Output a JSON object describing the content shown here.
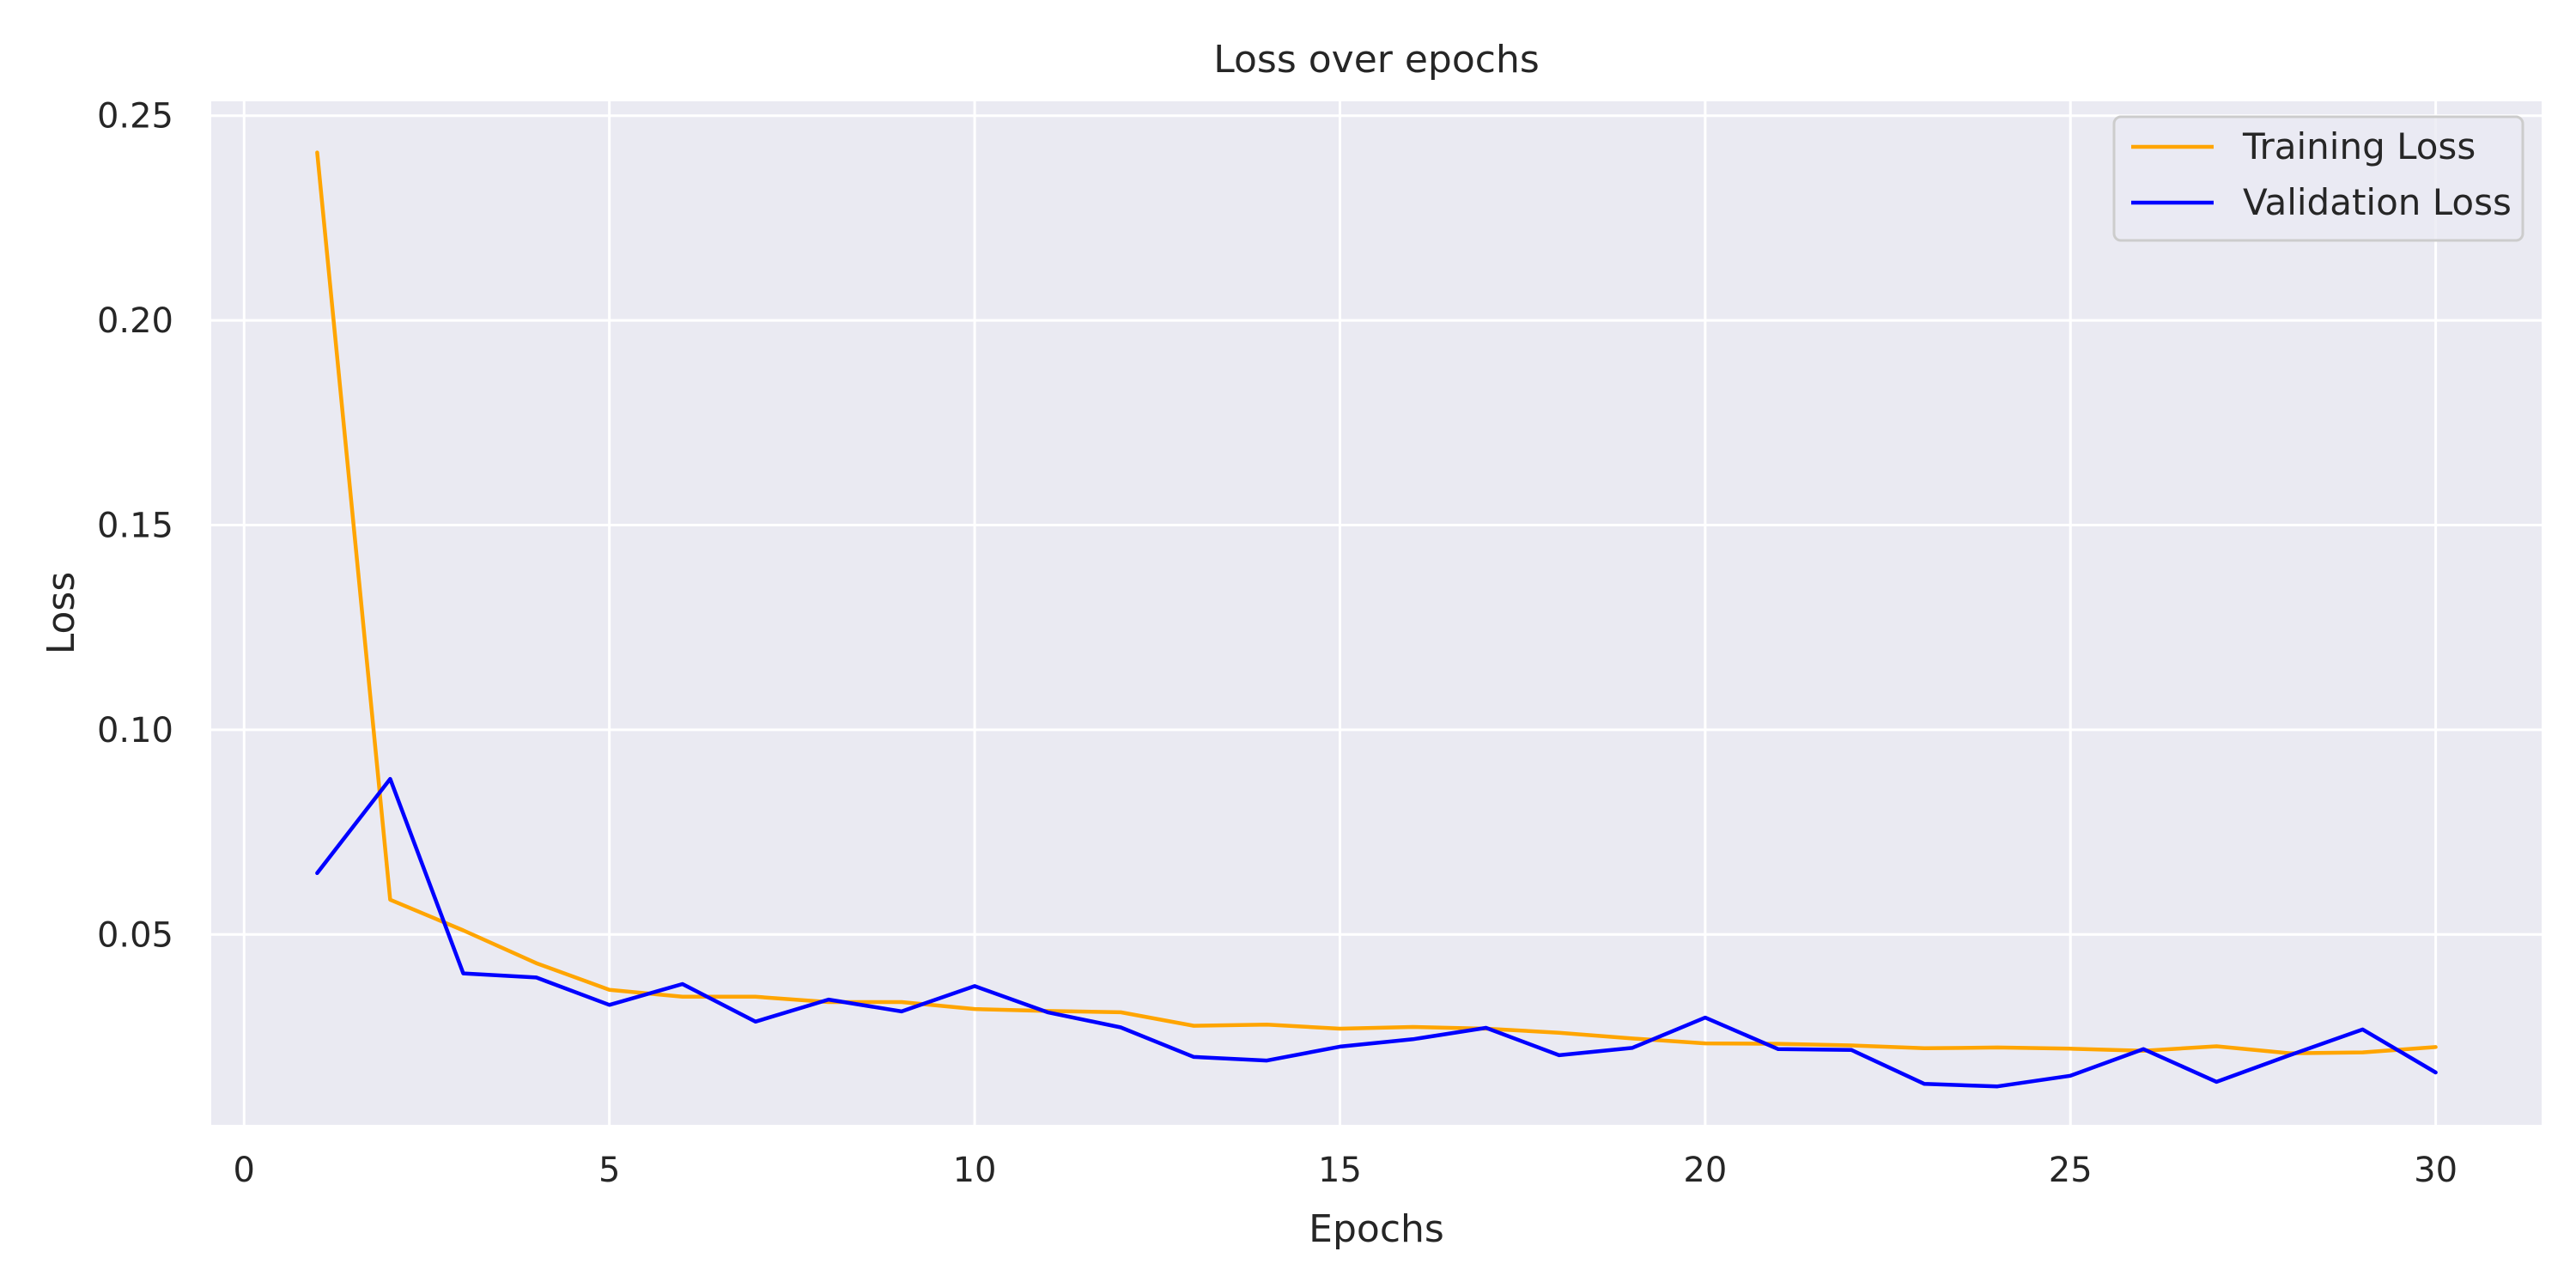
{
  "chart_data": {
    "type": "line",
    "title": "Loss over epochs",
    "xlabel": "Epochs",
    "ylabel": "Loss",
    "xlim": [
      -0.45,
      31.45
    ],
    "ylim": [
      0.0035,
      0.2535
    ],
    "xticks": [
      0,
      5,
      10,
      15,
      20,
      25,
      30
    ],
    "xtick_labels": [
      "0",
      "5",
      "10",
      "15",
      "20",
      "25",
      "30"
    ],
    "yticks": [
      0.05,
      0.1,
      0.15,
      0.2,
      0.25
    ],
    "ytick_labels": [
      "0.05",
      "0.10",
      "0.15",
      "0.20",
      "0.25"
    ],
    "grid": true,
    "legend_position": "top-right",
    "x": [
      1,
      2,
      3,
      4,
      5,
      6,
      7,
      8,
      9,
      10,
      11,
      12,
      13,
      14,
      15,
      16,
      17,
      18,
      19,
      20,
      21,
      22,
      23,
      24,
      25,
      26,
      27,
      28,
      29,
      30
    ],
    "series": [
      {
        "name": "Training Loss",
        "color": "#FFA500",
        "values": [
          0.241,
          0.0585,
          0.051,
          0.043,
          0.0365,
          0.0348,
          0.0348,
          0.0335,
          0.0335,
          0.0318,
          0.0313,
          0.031,
          0.0277,
          0.028,
          0.027,
          0.0274,
          0.027,
          0.026,
          0.0246,
          0.0234,
          0.0233,
          0.0229,
          0.0222,
          0.0224,
          0.0221,
          0.0216,
          0.0227,
          0.021,
          0.0212,
          0.0225
        ]
      },
      {
        "name": "Validation Loss",
        "color": "#0000FF",
        "values": [
          0.065,
          0.088,
          0.0405,
          0.0395,
          0.0328,
          0.0379,
          0.0287,
          0.0341,
          0.0312,
          0.0374,
          0.031,
          0.0273,
          0.0201,
          0.0192,
          0.0226,
          0.0244,
          0.0272,
          0.0205,
          0.0223,
          0.0297,
          0.022,
          0.0218,
          0.0135,
          0.0129,
          0.0155,
          0.022,
          0.014,
          0.0205,
          0.0268,
          0.0163
        ]
      }
    ]
  }
}
